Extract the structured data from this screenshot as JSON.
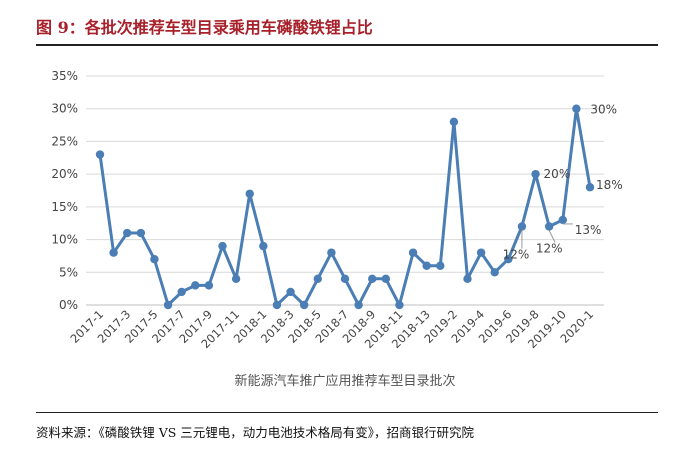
{
  "figure": {
    "title": "图 9：各批次推荐车型目录乘用车磷酸铁锂占比",
    "source": "资料来源：《磷酸铁锂 VS 三元锂电，动力电池技术格局有变》，招商银行研究院"
  },
  "colors": {
    "title": "#a8202a",
    "line": "#4a7eb5",
    "marker": "#4a7eb5",
    "grid": "#d9d9d9",
    "axis": "#bfbfbf"
  },
  "chart_data": {
    "type": "line",
    "xlabel": "新能源汽车推广应用推荐车型目录批次",
    "ylabel": "",
    "ylim": [
      0,
      35
    ],
    "yticks": [
      "0%",
      "5%",
      "10%",
      "15%",
      "20%",
      "25%",
      "30%",
      "35%"
    ],
    "grid": true,
    "x_tick_labels": [
      "2017-1",
      "2017-3",
      "2017-5",
      "2017-7",
      "2017-9",
      "2017-11",
      "2018-1",
      "2018-3",
      "2018-5",
      "2018-7",
      "2018-9",
      "2018-11",
      "2018-13",
      "2019-2",
      "2019-4",
      "2019-6",
      "2019-8",
      "2019-10",
      "2020-1"
    ],
    "values": [
      23,
      8,
      11,
      11,
      7,
      0,
      2,
      3,
      3,
      9,
      4,
      17,
      9,
      0,
      2,
      0,
      4,
      8,
      4,
      0,
      4,
      4,
      0,
      8,
      6,
      6,
      28,
      4,
      8,
      5,
      7,
      12,
      20,
      12,
      13,
      30,
      18
    ],
    "data_labels": [
      {
        "index": 31,
        "text": "12%"
      },
      {
        "index": 32,
        "text": "20%"
      },
      {
        "index": 33,
        "text": "12%"
      },
      {
        "index": 34,
        "text": "13%"
      },
      {
        "index": 35,
        "text": "30%"
      },
      {
        "index": 36,
        "text": "18%"
      }
    ]
  }
}
